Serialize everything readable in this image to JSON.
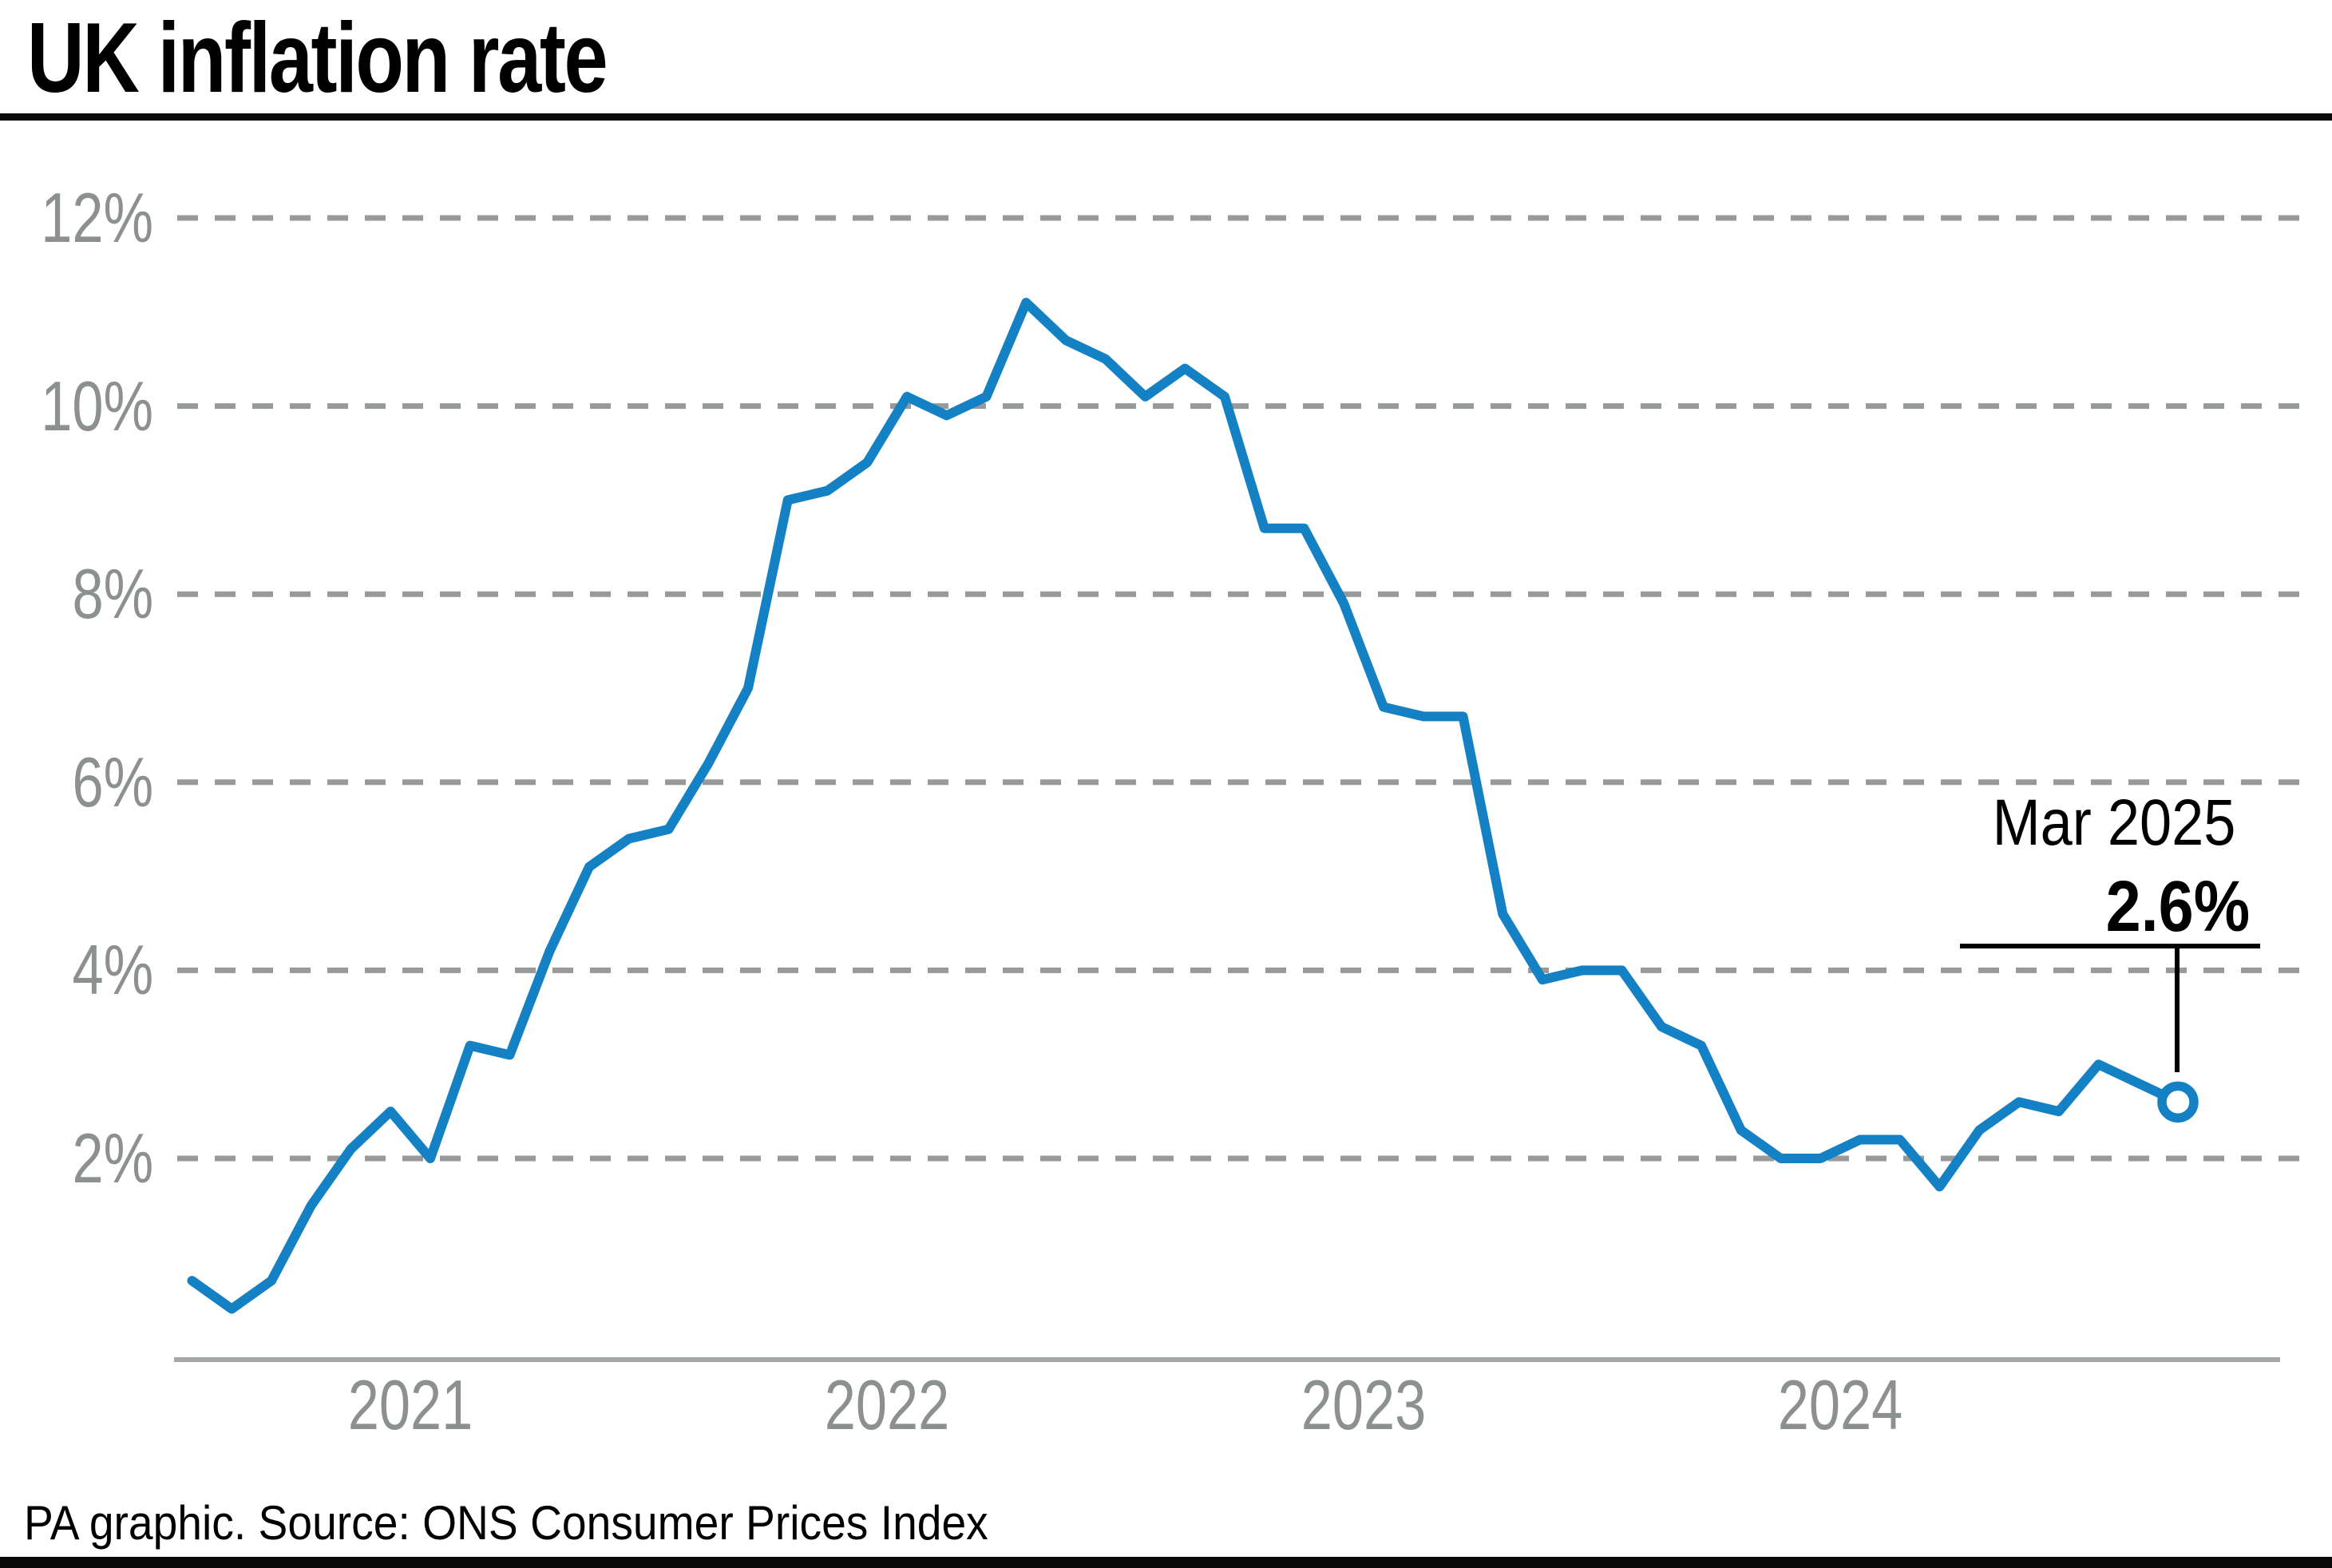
{
  "header": {
    "title": "UK inflation rate"
  },
  "footer": {
    "credit": "PA graphic. Source: ONS Consumer Prices Index"
  },
  "annotation": {
    "label": "Mar 2025",
    "value": "2.6%"
  },
  "colors": {
    "line": "#1581c5",
    "grid_dash": "#98999a",
    "axis_line": "#a5a8a8",
    "tick_text": "#8c9091",
    "annotation_text": "#000000",
    "rule_black": "#0a0a0a",
    "background": "#ffffff"
  },
  "chart_data": {
    "type": "line",
    "title": "UK inflation rate",
    "xlabel": "",
    "ylabel": "",
    "ylim": [
      0,
      12.6
    ],
    "grid": "dashed-horizontal",
    "legend": "none",
    "x": [
      "2021-01",
      "2021-02",
      "2021-03",
      "2021-04",
      "2021-05",
      "2021-06",
      "2021-07",
      "2021-08",
      "2021-09",
      "2021-10",
      "2021-11",
      "2021-12",
      "2022-01",
      "2022-02",
      "2022-03",
      "2022-04",
      "2022-05",
      "2022-06",
      "2022-07",
      "2022-08",
      "2022-09",
      "2022-10",
      "2022-11",
      "2022-12",
      "2023-01",
      "2023-02",
      "2023-03",
      "2023-04",
      "2023-05",
      "2023-06",
      "2023-07",
      "2023-08",
      "2023-09",
      "2023-10",
      "2023-11",
      "2023-12",
      "2024-01",
      "2024-02",
      "2024-03",
      "2024-04",
      "2024-05",
      "2024-06",
      "2024-07",
      "2024-08",
      "2024-09",
      "2024-10",
      "2024-11",
      "2024-12",
      "2025-01",
      "2025-02",
      "2025-03"
    ],
    "values": [
      0.7,
      0.4,
      0.7,
      1.5,
      2.1,
      2.5,
      2.0,
      3.2,
      3.1,
      4.2,
      5.1,
      5.4,
      5.5,
      6.2,
      7.0,
      9.0,
      9.1,
      9.4,
      10.1,
      9.9,
      10.1,
      11.1,
      10.7,
      10.5,
      10.1,
      10.4,
      10.1,
      8.7,
      8.7,
      7.9,
      6.8,
      6.7,
      6.7,
      4.6,
      3.9,
      4.0,
      4.0,
      3.4,
      3.2,
      2.3,
      2.0,
      2.0,
      2.2,
      2.2,
      1.7,
      2.3,
      2.6,
      2.5,
      3.0,
      2.8,
      2.6
    ],
    "yticks": [
      {
        "value": 12,
        "label": "12%"
      },
      {
        "value": 10,
        "label": "10%"
      },
      {
        "value": 8,
        "label": "8%"
      },
      {
        "value": 6,
        "label": "6%"
      },
      {
        "value": 4,
        "label": "4%"
      },
      {
        "value": 2,
        "label": "2%"
      }
    ],
    "year_labels": [
      {
        "label": "2021",
        "month_index": 5.5
      },
      {
        "label": "2022",
        "month_index": 17.5
      },
      {
        "label": "2023",
        "month_index": 29.5
      },
      {
        "label": "2024",
        "month_index": 41.5
      }
    ],
    "last_point": {
      "label": "Mar 2025",
      "value": 2.6
    }
  }
}
